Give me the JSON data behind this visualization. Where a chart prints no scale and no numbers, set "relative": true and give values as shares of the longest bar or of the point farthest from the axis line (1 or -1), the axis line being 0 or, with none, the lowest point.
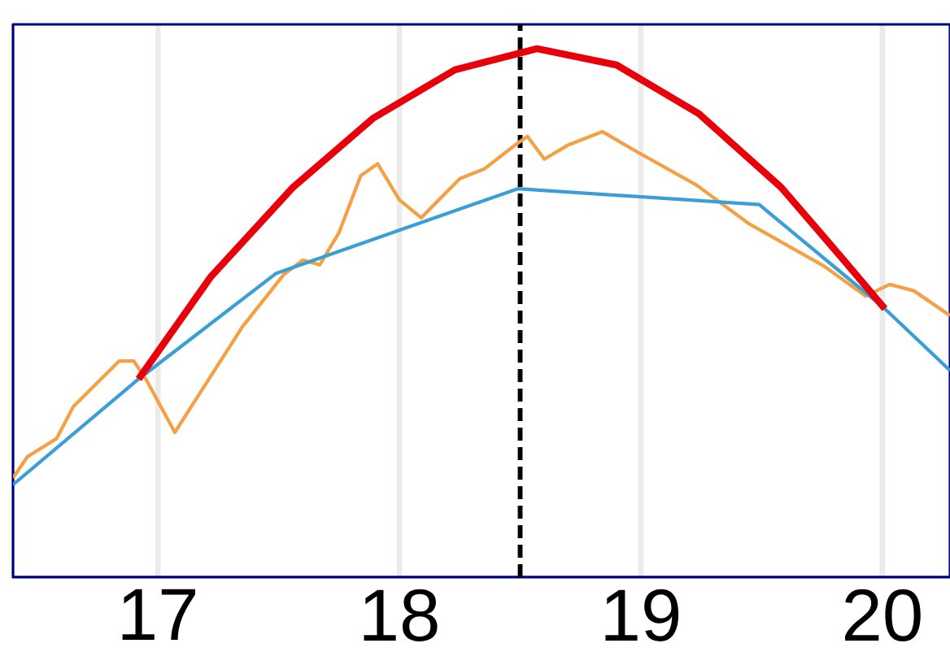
{
  "chart_data": {
    "type": "line",
    "relative": true,
    "grid": "x",
    "marker": "none",
    "line_style": "solid",
    "xlim": [
      16.4,
      20.28
    ],
    "xticks": [
      17,
      18,
      19,
      20
    ],
    "ref_lines": [
      {
        "axis": "x",
        "value": 18.5,
        "color": "#000000",
        "line_style": "dashed"
      }
    ],
    "series": [
      {
        "color": "#f4a044",
        "x": [
          16.4,
          16.46,
          16.58,
          16.65,
          16.84,
          16.9,
          16.95,
          17.07,
          17.35,
          17.52,
          17.6,
          17.67,
          17.75,
          17.84,
          17.91,
          18.0,
          18.09,
          18.25,
          18.35,
          18.48,
          18.53,
          18.6,
          18.7,
          18.84,
          18.98,
          19.23,
          19.45,
          19.76,
          19.93,
          20.03,
          20.13,
          20.28
        ],
        "values": [
          0.188,
          0.228,
          0.262,
          0.323,
          0.409,
          0.409,
          0.375,
          0.274,
          0.474,
          0.572,
          0.6,
          0.591,
          0.652,
          0.76,
          0.782,
          0.714,
          0.68,
          0.754,
          0.772,
          0.818,
          0.834,
          0.791,
          0.818,
          0.843,
          0.806,
          0.742,
          0.668,
          0.588,
          0.532,
          0.554,
          0.542,
          0.495
        ]
      },
      {
        "color": "#3a9fd6",
        "x": [
          16.4,
          16.92,
          17.49,
          18.49,
          19.49,
          20.01,
          20.28
        ],
        "values": [
          0.175,
          0.375,
          0.575,
          0.735,
          0.705,
          0.508,
          0.391
        ]
      },
      {
        "color": "#e8000b",
        "x": [
          16.92,
          17.22,
          17.56,
          17.89,
          18.23,
          18.57,
          18.9,
          19.24,
          19.58,
          19.84,
          20.01
        ],
        "values": [
          0.375,
          0.569,
          0.738,
          0.868,
          0.96,
          1.0,
          0.969,
          0.877,
          0.738,
          0.6,
          0.508
        ]
      }
    ]
  }
}
